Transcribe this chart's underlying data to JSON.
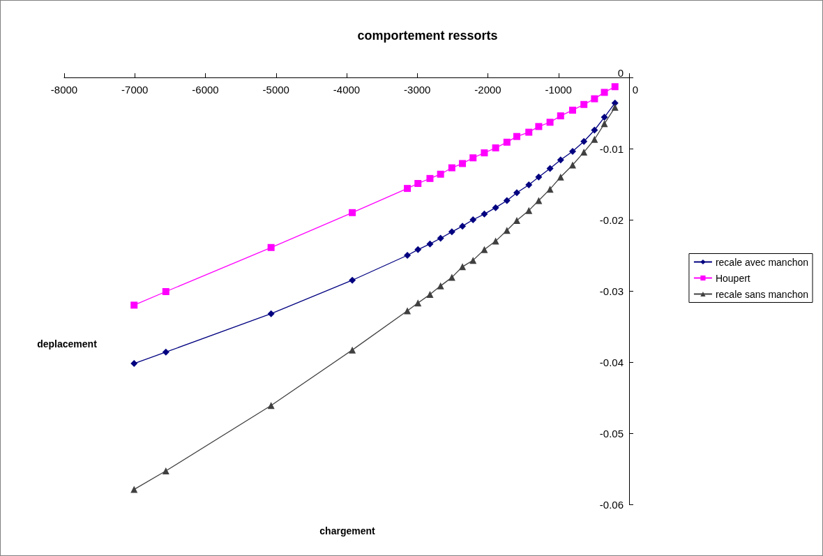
{
  "chart_data": {
    "type": "line",
    "title": "comportement ressorts",
    "xlabel": "chargement",
    "ylabel": "deplacement",
    "x": [
      -7010,
      -6560,
      -5070,
      -3920,
      -3140,
      -2990,
      -2820,
      -2670,
      -2510,
      -2360,
      -2210,
      -2050,
      -1890,
      -1730,
      -1590,
      -1420,
      -1280,
      -1120,
      -970,
      -800,
      -640,
      -490,
      -350,
      -200
    ],
    "series": [
      {
        "name": "recale avec manchon",
        "color": "#000080",
        "marker": "diamond",
        "values": [
          -0.0402,
          -0.0386,
          -0.0332,
          -0.0285,
          -0.025,
          -0.0242,
          -0.0234,
          -0.0226,
          -0.0217,
          -0.0209,
          -0.02,
          -0.0192,
          -0.0183,
          -0.0173,
          -0.0162,
          -0.0151,
          -0.014,
          -0.0128,
          -0.0116,
          -0.0104,
          -0.009,
          -0.0074,
          -0.0056,
          -0.0036
        ]
      },
      {
        "name": "Houpert",
        "color": "#ff00ff",
        "marker": "square",
        "values": [
          -0.032,
          -0.0301,
          -0.0239,
          -0.019,
          -0.0156,
          -0.0149,
          -0.0142,
          -0.0136,
          -0.0127,
          -0.0121,
          -0.0113,
          -0.0106,
          -0.0099,
          -0.0091,
          -0.0083,
          -0.0077,
          -0.0069,
          -0.0063,
          -0.0054,
          -0.0046,
          -0.0038,
          -0.003,
          -0.0021,
          -0.0013
        ]
      },
      {
        "name": "recale sans manchon",
        "color": "#404040",
        "marker": "triangle",
        "values": [
          -0.0579,
          -0.0553,
          -0.0461,
          -0.0383,
          -0.0328,
          -0.0317,
          -0.0305,
          -0.0293,
          -0.0281,
          -0.0266,
          -0.0257,
          -0.0242,
          -0.023,
          -0.0215,
          -0.0201,
          -0.0187,
          -0.0173,
          -0.0157,
          -0.014,
          -0.0123,
          -0.0105,
          -0.0087,
          -0.0065,
          -0.0042
        ]
      }
    ],
    "xlim": [
      -8000,
      0
    ],
    "xticks": [
      -8000,
      -7000,
      -6000,
      -5000,
      -4000,
      -3000,
      -2000,
      -1000,
      0
    ],
    "ylim": [
      -0.06,
      0
    ],
    "yticks": [
      -0.06,
      -0.05,
      -0.04,
      -0.03,
      -0.02,
      -0.01,
      0
    ],
    "grid": false,
    "legend": "right",
    "line_style": "solid"
  }
}
